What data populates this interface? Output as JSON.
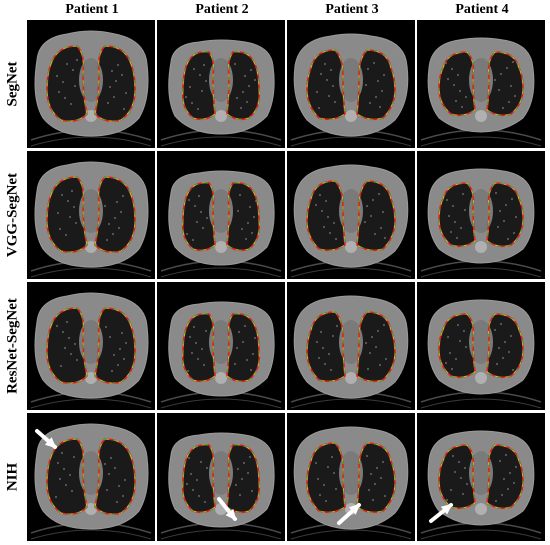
{
  "columns": [
    "Patient 1",
    "Patient 2",
    "Patient 3",
    "Patient 4"
  ],
  "rows": [
    "SegNet",
    "VGG-SegNet",
    "ResNet-SegNet",
    "NIH"
  ],
  "colors": {
    "background": "#000000",
    "body": "#8a8a8a",
    "lung": "#1a1a1a",
    "contour_red": "#e02020",
    "contour_green": "#2ec82e",
    "contour_yellow": "#e8d020",
    "arrow": "#ffffff"
  },
  "annotations": {
    "nih_row_arrows": [
      "Patient 1",
      "Patient 2",
      "Patient 3",
      "Patient 4"
    ]
  }
}
